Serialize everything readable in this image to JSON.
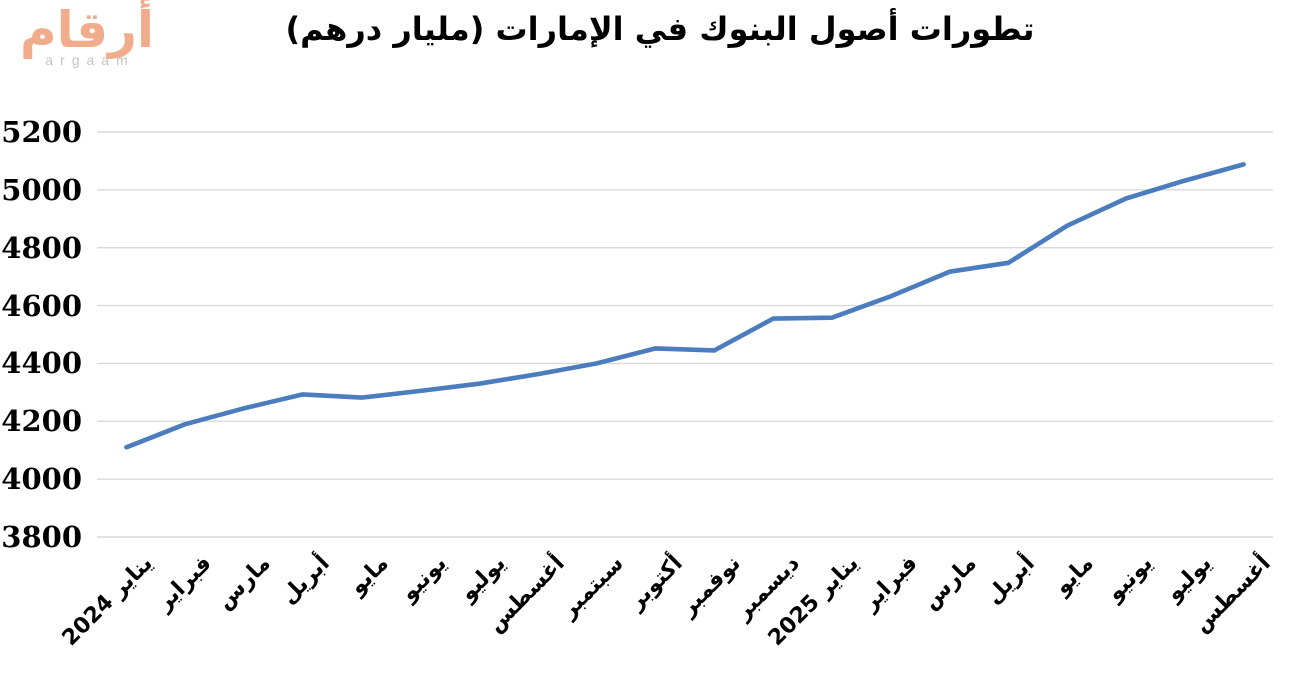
{
  "logo": {
    "arabic": "أرقام",
    "latin": "argaam"
  },
  "colors": {
    "line": "#4A7CBE",
    "gridline": "#D9D9D9",
    "title_text": "#000000",
    "axis_text": "#000000",
    "logo_arabic": "#F1AD8B",
    "logo_latin": "#C5C5C5",
    "background": "#FFFFFF"
  },
  "chart_data": {
    "type": "line",
    "title": "تطورات أصول البنوك في الإمارات (مليار درهم)",
    "xlabel": "",
    "ylabel": "",
    "categories": [
      "يناير 2024",
      "فبراير",
      "مارس",
      "أبريل",
      "مايو",
      "يونيو",
      "يوليو",
      "أغسطس",
      "سبتمبر",
      "أكتوبر",
      "نوفمبر",
      "ديسمبر",
      "يناير 2025",
      "فبراير",
      "مارس",
      "أبريل",
      "مايو",
      "يونيو",
      "يوليو",
      "أغسطس"
    ],
    "values": [
      4110,
      4190,
      4245,
      4293,
      4282,
      4305,
      4330,
      4363,
      4400,
      4452,
      4445,
      4555,
      4558,
      4632,
      4717,
      4748,
      4876,
      4970,
      5032,
      5088
    ],
    "ylim": [
      3800,
      5200
    ],
    "yticks": [
      3800,
      4000,
      4200,
      4400,
      4600,
      4800,
      5000,
      5200
    ],
    "ytick_step": 200,
    "grid": true,
    "legend": "none",
    "markers": "none"
  }
}
